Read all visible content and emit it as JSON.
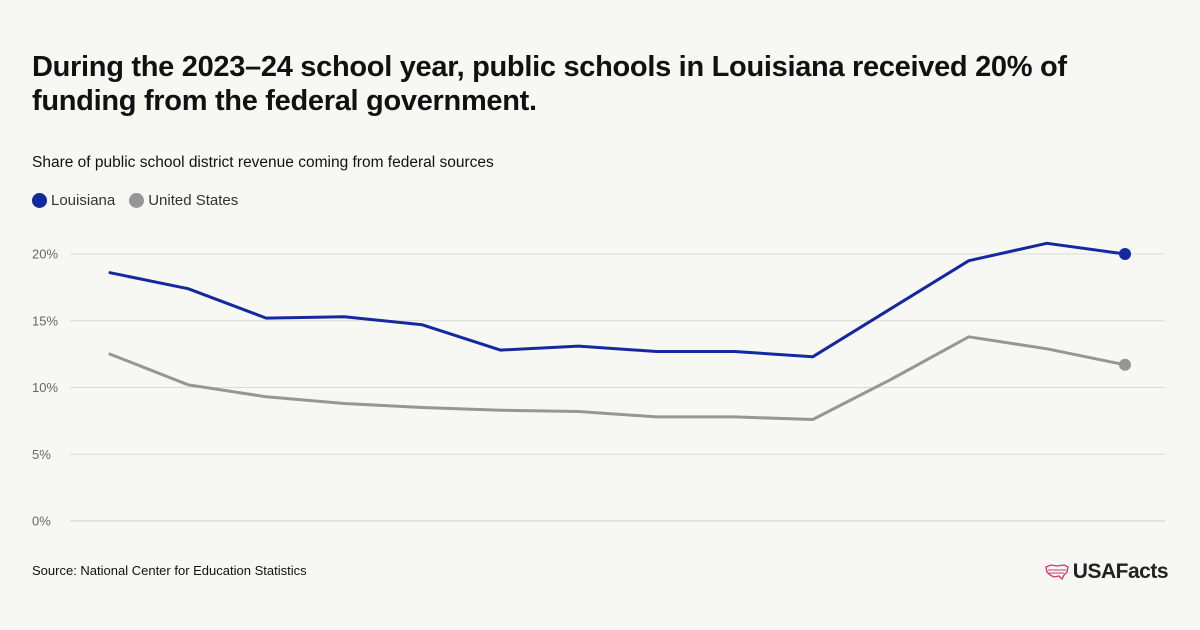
{
  "title": "During the 2023–24 school year, public schools in Louisiana received 20% of funding from the federal government.",
  "subtitle": "Share of public school district revenue coming from federal sources",
  "source": "Source: National Center for Education Statistics",
  "brand": "USAFacts",
  "colors": {
    "louisiana": "#1428a0",
    "united_states": "#969696",
    "grid": "#dcdcd6",
    "background": "#f7f7f3"
  },
  "legend": [
    {
      "label": "Louisiana",
      "color": "#1428a0"
    },
    {
      "label": "United States",
      "color": "#969696"
    }
  ],
  "chart_data": {
    "type": "line",
    "title": "",
    "xlabel": "",
    "ylabel": "",
    "ylim": [
      0,
      20
    ],
    "yticks": [
      0,
      5,
      10,
      15,
      20
    ],
    "ytick_labels": [
      "0%",
      "5%",
      "10%",
      "15%",
      "20%"
    ],
    "grid": true,
    "legend_position": "top-left",
    "series": [
      {
        "name": "Louisiana",
        "color": "#1428a0",
        "values": [
          18.6,
          17.4,
          15.2,
          15.3,
          14.7,
          12.8,
          13.1,
          12.7,
          12.7,
          12.3,
          15.9,
          19.5,
          20.8,
          20.0
        ]
      },
      {
        "name": "United States",
        "color": "#969696",
        "values": [
          12.5,
          10.2,
          9.3,
          8.8,
          8.5,
          8.3,
          8.2,
          7.8,
          7.8,
          7.6,
          10.6,
          13.8,
          12.9,
          11.7
        ]
      }
    ]
  }
}
